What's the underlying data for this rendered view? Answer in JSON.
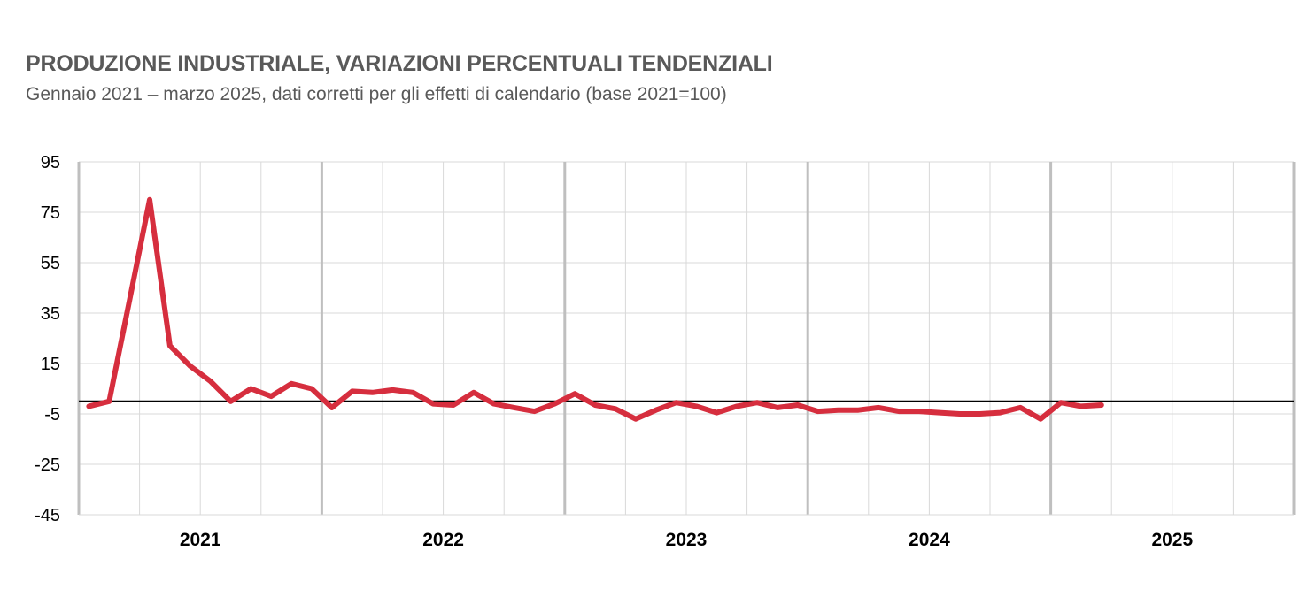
{
  "chart_data": {
    "type": "line",
    "title": "PRODUZIONE INDUSTRIALE, VARIAZIONI PERCENTUALI TENDENZIALI",
    "subtitle": "Gennaio 2021 – marzo 2025, dati corretti per gli effetti di calendario (base 2021=100)",
    "xlabel": "",
    "ylabel": "",
    "ylim": [
      -45,
      95
    ],
    "yticks": [
      95,
      75,
      55,
      35,
      15,
      -5,
      -25,
      -45
    ],
    "year_labels": [
      "2021",
      "2022",
      "2023",
      "2024",
      "2025"
    ],
    "grid": true,
    "series_color": "#d62e3e",
    "x": [
      "2021-01",
      "2021-02",
      "2021-03",
      "2021-04",
      "2021-05",
      "2021-06",
      "2021-07",
      "2021-08",
      "2021-09",
      "2021-10",
      "2021-11",
      "2021-12",
      "2022-01",
      "2022-02",
      "2022-03",
      "2022-04",
      "2022-05",
      "2022-06",
      "2022-07",
      "2022-08",
      "2022-09",
      "2022-10",
      "2022-11",
      "2022-12",
      "2023-01",
      "2023-02",
      "2023-03",
      "2023-04",
      "2023-05",
      "2023-06",
      "2023-07",
      "2023-08",
      "2023-09",
      "2023-10",
      "2023-11",
      "2023-12",
      "2024-01",
      "2024-02",
      "2024-03",
      "2024-04",
      "2024-05",
      "2024-06",
      "2024-07",
      "2024-08",
      "2024-09",
      "2024-10",
      "2024-11",
      "2024-12",
      "2025-01",
      "2025-02",
      "2025-03"
    ],
    "series": [
      {
        "values": [
          -2.0,
          0.0,
          40.0,
          80.0,
          22.0,
          14.0,
          8.0,
          0.0,
          5.0,
          2.0,
          7.0,
          5.0,
          -2.5,
          4.0,
          3.5,
          4.5,
          3.5,
          -1.0,
          -1.5,
          3.5,
          -1.0,
          -2.5,
          -4.0,
          -1.0,
          3.0,
          -1.5,
          -3.0,
          -7.0,
          -3.5,
          -0.5,
          -2.0,
          -4.5,
          -2.0,
          -0.5,
          -2.5,
          -1.5,
          -4.0,
          -3.5,
          -3.5,
          -2.5,
          -4.0,
          -4.0,
          -4.5,
          -5.0,
          -5.0,
          -4.5,
          -2.5,
          -7.0,
          -0.5,
          -2.0,
          -1.5
        ]
      }
    ]
  }
}
